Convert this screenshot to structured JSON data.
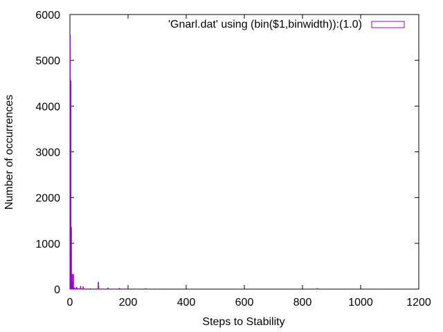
{
  "chart_data": {
    "type": "bar",
    "title": "",
    "xlabel": "Steps to Stability",
    "ylabel": "Number of occurrences",
    "xlim": [
      0,
      1200
    ],
    "ylim": [
      0,
      6000
    ],
    "xticks": [
      "0",
      "200",
      "400",
      "600",
      "800",
      "1000",
      "1200"
    ],
    "yticks": [
      "0",
      "1000",
      "2000",
      "3000",
      "4000",
      "5000",
      "6000"
    ],
    "grid": false,
    "legend_position": "top-right",
    "bin_width": 1,
    "series": [
      {
        "name": "'Gnarl.dat' using (bin($1,binwidth)):(1.0)",
        "color": "#9400d3",
        "x": [
          0,
          1,
          2,
          3,
          4,
          5,
          6,
          7,
          8,
          9,
          10,
          11,
          12,
          13,
          14,
          15,
          16,
          18,
          20,
          22,
          25,
          28,
          32,
          36,
          40,
          45,
          50,
          60,
          70,
          80,
          90,
          97,
          98,
          110,
          130,
          150,
          170,
          190,
          230,
          260,
          300,
          850
        ],
        "values": [
          5550,
          2720,
          4550,
          330,
          1350,
          320,
          150,
          90,
          60,
          320,
          40,
          320,
          30,
          25,
          30,
          20,
          15,
          12,
          10,
          40,
          15,
          10,
          8,
          60,
          10,
          50,
          8,
          6,
          12,
          5,
          6,
          150,
          60,
          5,
          25,
          4,
          20,
          6,
          3,
          12,
          3,
          15
        ]
      }
    ]
  }
}
